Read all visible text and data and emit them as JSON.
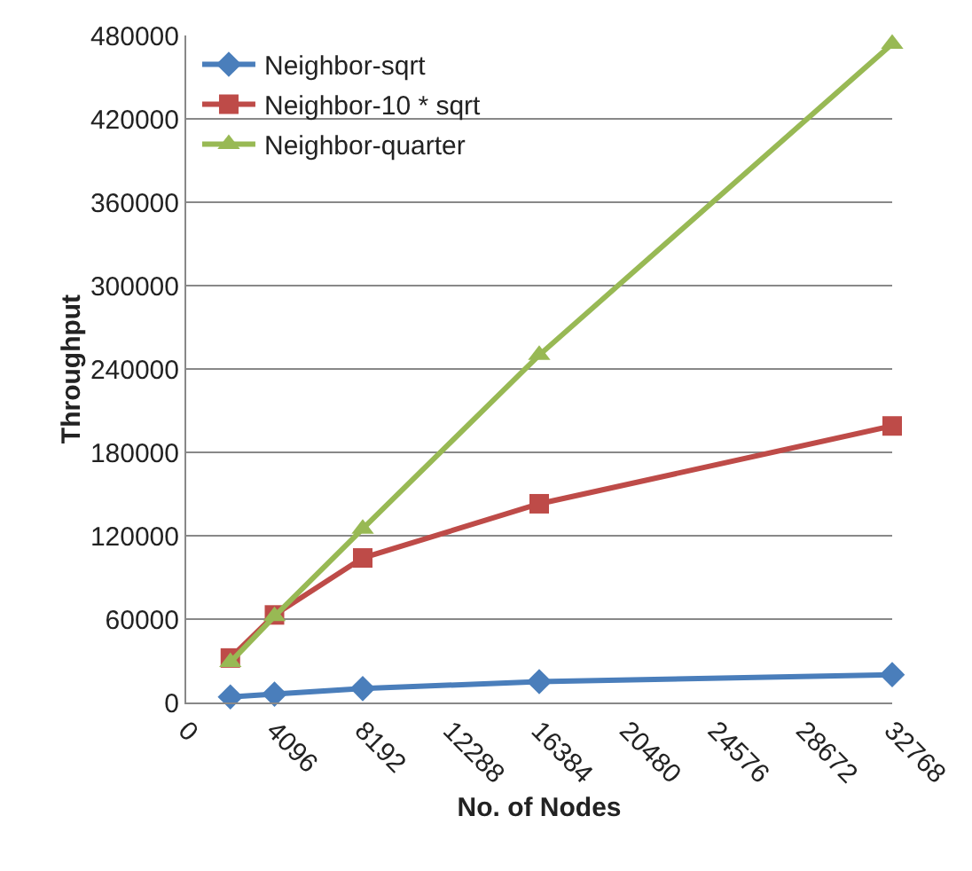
{
  "chart_data": {
    "type": "line",
    "xlabel": "No. of Nodes",
    "ylabel": "Throughput",
    "x": [
      2048,
      4096,
      8192,
      16384,
      32768
    ],
    "series": [
      {
        "name": "Neighbor-sqrt",
        "color": "#4a7ebb",
        "marker": "diamond",
        "values": [
          4000,
          6000,
          10000,
          15000,
          20000
        ]
      },
      {
        "name": "Neighbor-10 * sqrt",
        "color": "#be4b48",
        "marker": "square",
        "values": [
          32000,
          63000,
          104000,
          143000,
          199000
        ]
      },
      {
        "name": "Neighbor-quarter",
        "color": "#98b954",
        "marker": "triangle",
        "values": [
          29000,
          62000,
          125000,
          250000,
          474000
        ]
      }
    ],
    "xlim": [
      0,
      32768
    ],
    "xticks": [
      0,
      4096,
      8192,
      12288,
      16384,
      20480,
      24576,
      28672,
      32768
    ],
    "ylim": [
      0,
      480000
    ],
    "yticks": [
      0,
      60000,
      120000,
      180000,
      240000,
      300000,
      360000,
      420000,
      480000
    ],
    "grid": "y",
    "legend": "top left",
    "line_style": "solid"
  }
}
